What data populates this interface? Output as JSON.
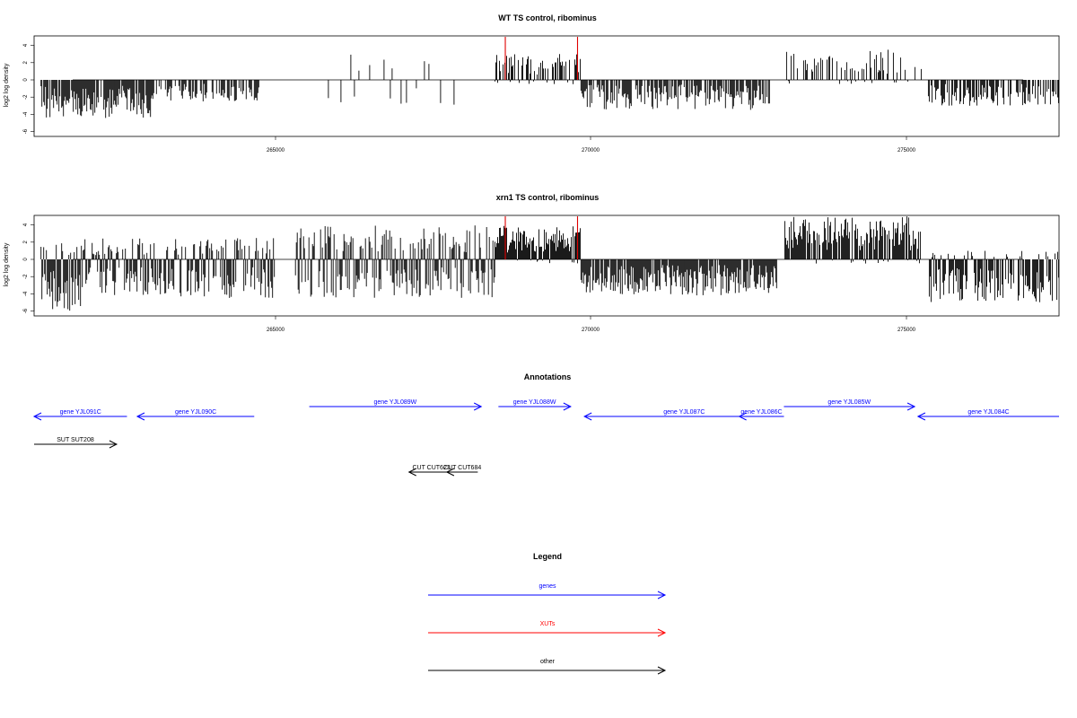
{
  "chart_data": [
    {
      "type": "bar",
      "title": "WT TS control, ribominus",
      "ylabel": "log2 log density",
      "xlabel": "",
      "xlim": [
        261900,
        276800
      ],
      "ylim": [
        -6,
        5
      ],
      "x_ticks": [
        "265000",
        "270000",
        "275000"
      ],
      "y_ticks": [
        "4",
        "2",
        "0",
        "-2",
        "-4",
        "-6"
      ],
      "grid": false,
      "bar_color": "#000000",
      "marker_color": "#e00000",
      "markers": [
        {
          "x": 268750,
          "y": 5
        },
        {
          "x": 269800,
          "y": 5
        }
      ],
      "segments": [
        {
          "start": 262000,
          "end": 263600,
          "density": 0.9,
          "low": -4.5,
          "high": 0
        },
        {
          "start": 263600,
          "end": 265200,
          "density": 0.5,
          "low": -2.5,
          "high": 0
        },
        {
          "start": 266100,
          "end": 268100,
          "density": 0.12,
          "low": -3,
          "high": 3
        },
        {
          "start": 268600,
          "end": 269850,
          "density": 0.6,
          "low": -0.5,
          "high": 3
        },
        {
          "start": 269850,
          "end": 272600,
          "density": 0.7,
          "low": -3.5,
          "high": 0
        },
        {
          "start": 272800,
          "end": 274800,
          "density": 0.4,
          "low": -0.5,
          "high": 3.5
        },
        {
          "start": 274900,
          "end": 276800,
          "density": 0.6,
          "low": -3,
          "high": 0
        }
      ]
    },
    {
      "type": "bar",
      "title": "xrn1 TS control, ribominus",
      "ylabel": "log2 log density",
      "xlabel": "",
      "xlim": [
        261900,
        276800
      ],
      "ylim": [
        -6,
        5
      ],
      "x_ticks": [
        "265000",
        "270000",
        "275000"
      ],
      "y_ticks": [
        "4",
        "2",
        "0",
        "-2",
        "-4",
        "-6"
      ],
      "grid": false,
      "bar_color": "#000000",
      "marker_color": "#e00000",
      "markers": [
        {
          "x": 268750,
          "y": 5
        },
        {
          "x": 269800,
          "y": 5
        }
      ],
      "segments": [
        {
          "start": 262000,
          "end": 262600,
          "density": 1.0,
          "low": -6,
          "high": 2
        },
        {
          "start": 262600,
          "end": 265400,
          "density": 0.85,
          "low": -4.5,
          "high": 2.5
        },
        {
          "start": 265700,
          "end": 268600,
          "density": 0.85,
          "low": -4.5,
          "high": 4
        },
        {
          "start": 268600,
          "end": 269850,
          "density": 1.0,
          "low": -0.5,
          "high": 4
        },
        {
          "start": 269850,
          "end": 272700,
          "density": 0.9,
          "low": -4.2,
          "high": 0
        },
        {
          "start": 272800,
          "end": 274800,
          "density": 0.9,
          "low": -0.5,
          "high": 5
        },
        {
          "start": 274900,
          "end": 276800,
          "density": 0.8,
          "low": -5,
          "high": 1
        }
      ]
    },
    {
      "type": "table",
      "title": "Annotations",
      "xlim": [
        261900,
        276800
      ],
      "features": [
        {
          "label": "gene YJL091C",
          "start": 261900,
          "end": 263250,
          "strand": "-",
          "category": "genes",
          "row": 0
        },
        {
          "label": "gene YJL090C",
          "start": 263400,
          "end": 265100,
          "strand": "-",
          "category": "genes",
          "row": 0
        },
        {
          "label": "gene YJL089W",
          "start": 265900,
          "end": 268400,
          "strand": "+",
          "category": "genes",
          "row": 1
        },
        {
          "label": "gene YJL088W",
          "start": 268650,
          "end": 269700,
          "strand": "+",
          "category": "genes",
          "row": 1
        },
        {
          "label": "gene YJL087C",
          "start": 269900,
          "end": 272800,
          "strand": "-",
          "category": "genes",
          "row": 0
        },
        {
          "label": "gene YJL086C",
          "start": 272150,
          "end": 272800,
          "strand": "-",
          "category": "genes",
          "row": 0
        },
        {
          "label": "gene YJL085W",
          "start": 272800,
          "end": 274700,
          "strand": "+",
          "category": "genes",
          "row": 1
        },
        {
          "label": "gene YJL084C",
          "start": 274750,
          "end": 276800,
          "strand": "-",
          "category": "genes",
          "row": 0
        },
        {
          "label": "SUT SUT208",
          "start": 261900,
          "end": 263100,
          "strand": "+",
          "category": "other",
          "row": 2
        },
        {
          "label": "CUT CUT623",
          "start": 267350,
          "end": 268000,
          "strand": "-",
          "category": "other",
          "row": 3
        },
        {
          "label": "CUT CUT684",
          "start": 267900,
          "end": 268350,
          "strand": "-",
          "category": "other",
          "row": 3
        }
      ]
    }
  ],
  "legend": {
    "title": "Legend",
    "items": [
      {
        "label": "genes",
        "color": "#0000ff"
      },
      {
        "label": "XUTs",
        "color": "#ff0000"
      },
      {
        "label": "other",
        "color": "#000000"
      }
    ]
  }
}
